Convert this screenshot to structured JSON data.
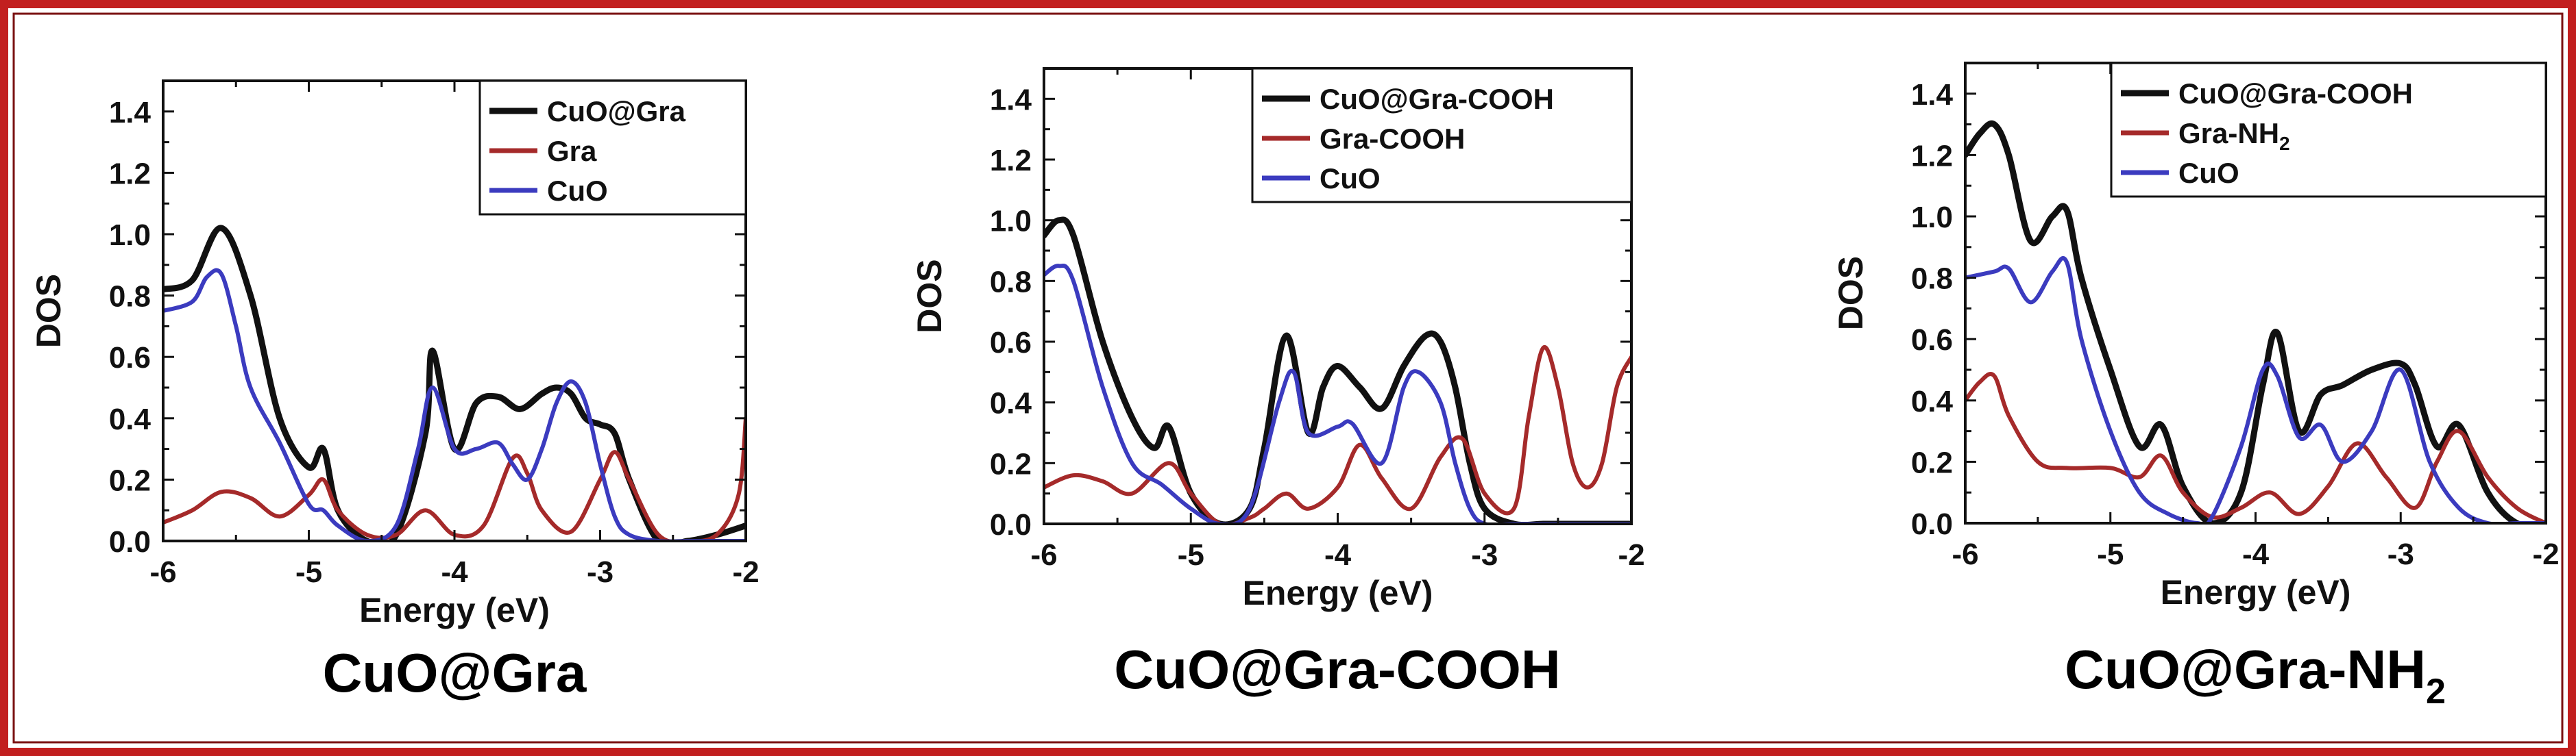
{
  "frame": {
    "border_color": "#c21f1f"
  },
  "chart_data": [
    {
      "type": "line",
      "caption": "CuO@Gra",
      "caption_sub": "",
      "xlabel": "Energy (eV)",
      "ylabel": "DOS",
      "xlim": [
        -6,
        -2
      ],
      "ylim": [
        0,
        1.5
      ],
      "xticks": [
        "-6",
        "-5",
        "-4",
        "-3",
        "-2"
      ],
      "yticks": [
        "0.0",
        "0.2",
        "0.4",
        "0.6",
        "0.8",
        "1.0",
        "1.2",
        "1.4"
      ],
      "series": [
        {
          "name": "CuO@Gra",
          "color": "#111111",
          "x": [
            -6.0,
            -5.8,
            -5.6,
            -5.4,
            -5.2,
            -5.0,
            -4.9,
            -4.8,
            -4.6,
            -4.4,
            -4.2,
            -4.15,
            -4.0,
            -3.85,
            -3.7,
            -3.55,
            -3.4,
            -3.3,
            -3.2,
            -3.1,
            -3.0,
            -2.9,
            -2.8,
            -2.6,
            -2.4,
            -2.2,
            -2.0
          ],
          "y": [
            0.82,
            0.85,
            1.02,
            0.8,
            0.4,
            0.24,
            0.3,
            0.1,
            0.0,
            0.02,
            0.35,
            0.62,
            0.3,
            0.45,
            0.47,
            0.43,
            0.48,
            0.5,
            0.48,
            0.4,
            0.38,
            0.35,
            0.2,
            0.0,
            0.0,
            0.02,
            0.05
          ]
        },
        {
          "name": "Gra",
          "color": "#a52a2a",
          "x": [
            -6.0,
            -5.8,
            -5.6,
            -5.4,
            -5.2,
            -5.0,
            -4.9,
            -4.8,
            -4.6,
            -4.4,
            -4.2,
            -4.0,
            -3.8,
            -3.6,
            -3.5,
            -3.4,
            -3.2,
            -3.0,
            -2.9,
            -2.8,
            -2.6,
            -2.4,
            -2.2,
            -2.05,
            -2.0
          ],
          "y": [
            0.06,
            0.1,
            0.16,
            0.14,
            0.08,
            0.15,
            0.2,
            0.1,
            0.02,
            0.02,
            0.1,
            0.02,
            0.05,
            0.27,
            0.22,
            0.1,
            0.03,
            0.2,
            0.29,
            0.2,
            0.02,
            0.0,
            0.02,
            0.15,
            0.4
          ]
        },
        {
          "name": "CuO",
          "color": "#3b3bbf",
          "x": [
            -6.0,
            -5.8,
            -5.7,
            -5.6,
            -5.5,
            -5.4,
            -5.2,
            -5.0,
            -4.9,
            -4.8,
            -4.6,
            -4.4,
            -4.25,
            -4.15,
            -4.0,
            -3.85,
            -3.7,
            -3.6,
            -3.5,
            -3.4,
            -3.3,
            -3.2,
            -3.1,
            -3.0,
            -2.9,
            -2.8,
            -2.6,
            -2.4,
            -2.2,
            -2.0
          ],
          "y": [
            0.75,
            0.78,
            0.86,
            0.87,
            0.7,
            0.5,
            0.32,
            0.12,
            0.1,
            0.05,
            0.0,
            0.05,
            0.3,
            0.5,
            0.3,
            0.3,
            0.32,
            0.25,
            0.2,
            0.3,
            0.45,
            0.52,
            0.45,
            0.25,
            0.08,
            0.02,
            0.0,
            0.0,
            0.0,
            0.0
          ]
        }
      ]
    },
    {
      "type": "line",
      "caption": "CuO@Gra-COOH",
      "caption_sub": "",
      "xlabel": "Energy (eV)",
      "ylabel": "DOS",
      "xlim": [
        -6,
        -2
      ],
      "ylim": [
        0,
        1.5
      ],
      "xticks": [
        "-6",
        "-5",
        "-4",
        "-3",
        "-2"
      ],
      "yticks": [
        "0.0",
        "0.2",
        "0.4",
        "0.6",
        "0.8",
        "1.0",
        "1.2",
        "1.4"
      ],
      "series": [
        {
          "name": "CuO@Gra-COOH",
          "color": "#111111",
          "x": [
            -6.0,
            -5.9,
            -5.8,
            -5.6,
            -5.4,
            -5.25,
            -5.15,
            -5.0,
            -4.8,
            -4.6,
            -4.5,
            -4.35,
            -4.2,
            -4.1,
            -4.0,
            -3.85,
            -3.7,
            -3.55,
            -3.4,
            -3.3,
            -3.2,
            -3.1,
            -3.0,
            -2.8,
            -2.6,
            -2.4,
            -2.2,
            -2.0
          ],
          "y": [
            0.95,
            1.0,
            0.95,
            0.6,
            0.35,
            0.25,
            0.32,
            0.1,
            0.0,
            0.05,
            0.25,
            0.62,
            0.3,
            0.45,
            0.52,
            0.45,
            0.38,
            0.52,
            0.62,
            0.6,
            0.45,
            0.2,
            0.05,
            0.0,
            0.0,
            0.0,
            0.0,
            0.0
          ]
        },
        {
          "name": "Gra-COOH",
          "color": "#a52a2a",
          "x": [
            -6.0,
            -5.8,
            -5.6,
            -5.4,
            -5.15,
            -5.0,
            -4.8,
            -4.6,
            -4.5,
            -4.35,
            -4.2,
            -4.0,
            -3.85,
            -3.7,
            -3.5,
            -3.3,
            -3.15,
            -3.0,
            -2.8,
            -2.7,
            -2.6,
            -2.5,
            -2.4,
            -2.3,
            -2.2,
            -2.1,
            -2.0
          ],
          "y": [
            0.12,
            0.16,
            0.14,
            0.1,
            0.2,
            0.1,
            0.0,
            0.02,
            0.05,
            0.1,
            0.05,
            0.12,
            0.26,
            0.15,
            0.05,
            0.22,
            0.28,
            0.1,
            0.05,
            0.35,
            0.58,
            0.45,
            0.2,
            0.12,
            0.2,
            0.45,
            0.55
          ]
        },
        {
          "name": "CuO",
          "color": "#3b3bbf",
          "x": [
            -6.0,
            -5.9,
            -5.8,
            -5.6,
            -5.4,
            -5.2,
            -5.0,
            -4.8,
            -4.6,
            -4.4,
            -4.3,
            -4.2,
            -4.0,
            -3.9,
            -3.7,
            -3.55,
            -3.45,
            -3.3,
            -3.2,
            -3.1,
            -3.0,
            -2.8,
            -2.6,
            -2.4,
            -2.2,
            -2.0
          ],
          "y": [
            0.82,
            0.85,
            0.8,
            0.45,
            0.2,
            0.13,
            0.05,
            0.0,
            0.05,
            0.4,
            0.5,
            0.3,
            0.32,
            0.33,
            0.2,
            0.45,
            0.5,
            0.4,
            0.2,
            0.05,
            0.0,
            0.0,
            0.0,
            0.0,
            0.0,
            0.0
          ]
        }
      ]
    },
    {
      "type": "line",
      "caption": "CuO@Gra-NH",
      "caption_sub": "2",
      "xlabel": "Energy (eV)",
      "ylabel": "DOS",
      "xlim": [
        -6,
        -2
      ],
      "ylim": [
        0,
        1.5
      ],
      "xticks": [
        "-6",
        "-5",
        "-4",
        "-3",
        "-2"
      ],
      "yticks": [
        "0.0",
        "0.2",
        "0.4",
        "0.6",
        "0.8",
        "1.0",
        "1.2",
        "1.4"
      ],
      "series": [
        {
          "name": "CuO@Gra-COOH",
          "color": "#111111",
          "x": [
            -6.0,
            -5.9,
            -5.8,
            -5.7,
            -5.55,
            -5.4,
            -5.3,
            -5.2,
            -5.0,
            -4.8,
            -4.65,
            -4.5,
            -4.3,
            -4.1,
            -3.95,
            -3.85,
            -3.7,
            -3.55,
            -3.4,
            -3.2,
            -3.0,
            -2.9,
            -2.75,
            -2.6,
            -2.4,
            -2.2,
            -2.0
          ],
          "y": [
            1.2,
            1.27,
            1.3,
            1.2,
            0.92,
            1.0,
            1.02,
            0.8,
            0.5,
            0.25,
            0.32,
            0.12,
            0.0,
            0.1,
            0.45,
            0.62,
            0.3,
            0.42,
            0.45,
            0.5,
            0.52,
            0.45,
            0.25,
            0.32,
            0.1,
            0.0,
            0.0
          ]
        },
        {
          "name": "Gra-NH₂",
          "color": "#a52a2a",
          "x": [
            -6.0,
            -5.9,
            -5.8,
            -5.7,
            -5.5,
            -5.3,
            -5.0,
            -4.8,
            -4.65,
            -4.5,
            -4.3,
            -4.1,
            -3.9,
            -3.7,
            -3.5,
            -3.3,
            -3.1,
            -2.9,
            -2.75,
            -2.6,
            -2.4,
            -2.2,
            -2.0
          ],
          "y": [
            0.4,
            0.46,
            0.48,
            0.35,
            0.2,
            0.18,
            0.18,
            0.15,
            0.22,
            0.1,
            0.02,
            0.05,
            0.1,
            0.03,
            0.12,
            0.26,
            0.15,
            0.05,
            0.2,
            0.3,
            0.15,
            0.05,
            0.0
          ]
        },
        {
          "name": "CuO",
          "color": "#3b3bbf",
          "x": [
            -6.0,
            -5.8,
            -5.7,
            -5.55,
            -5.4,
            -5.3,
            -5.2,
            -5.0,
            -4.8,
            -4.6,
            -4.4,
            -4.3,
            -4.1,
            -3.95,
            -3.85,
            -3.7,
            -3.55,
            -3.4,
            -3.2,
            -3.0,
            -2.8,
            -2.6,
            -2.4,
            -2.2,
            -2.0
          ],
          "y": [
            0.8,
            0.82,
            0.83,
            0.72,
            0.82,
            0.85,
            0.6,
            0.3,
            0.1,
            0.03,
            0.0,
            0.02,
            0.25,
            0.5,
            0.48,
            0.28,
            0.32,
            0.2,
            0.3,
            0.5,
            0.2,
            0.05,
            0.0,
            0.0,
            0.0
          ]
        }
      ]
    }
  ]
}
